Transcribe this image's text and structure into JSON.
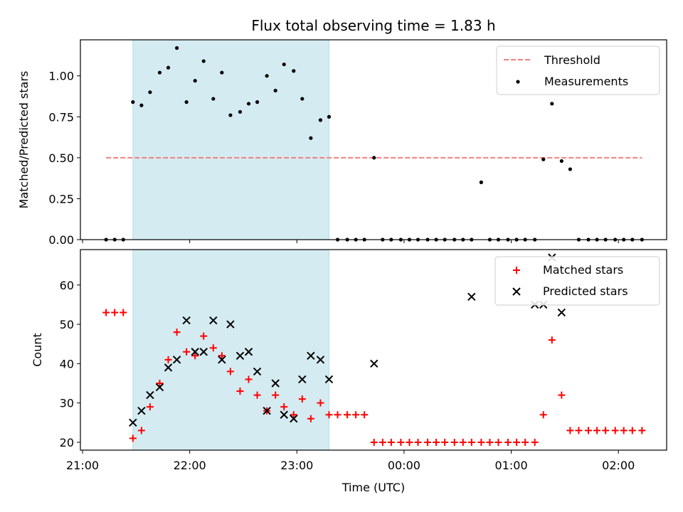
{
  "title": "Flux total observing time = 1.83 h",
  "chart_data": [
    {
      "type": "scatter",
      "ylabel": "Matched/Predicted stars",
      "ylim": [
        0,
        1.22
      ],
      "yticks": [
        0,
        0.25,
        0.5,
        0.75,
        1.0
      ],
      "ytick_labels": [
        "0.00",
        "0.25",
        "0.50",
        "0.75",
        "1.00"
      ],
      "xlim": [
        -0.02,
        5.45
      ],
      "shaded_span": [
        0.47,
        2.3
      ],
      "shade_color": "#d4ebf1",
      "threshold": {
        "name": "Threshold",
        "value": 0.5,
        "x_range": [
          0.22,
          5.22
        ],
        "color": "#f08080"
      },
      "series": [
        {
          "name": "Measurements",
          "marker": "dot",
          "color": "#000000",
          "x": [
            0.22,
            0.3,
            0.38,
            0.47,
            0.55,
            0.63,
            0.72,
            0.8,
            0.88,
            0.97,
            1.05,
            1.13,
            1.22,
            1.3,
            1.38,
            1.47,
            1.55,
            1.63,
            1.72,
            1.8,
            1.88,
            1.97,
            2.05,
            2.13,
            2.22,
            2.3,
            2.38,
            2.47,
            2.55,
            2.63,
            2.72,
            2.8,
            2.88,
            2.97,
            3.05,
            3.13,
            3.22,
            3.3,
            3.38,
            3.47,
            3.55,
            3.63,
            3.72,
            3.8,
            3.88,
            3.97,
            4.05,
            4.13,
            4.22,
            4.3,
            4.38,
            4.47,
            4.55,
            4.63,
            4.72,
            4.8,
            4.88,
            4.97,
            5.05,
            5.13,
            5.22
          ],
          "y": [
            0,
            0,
            0,
            0.84,
            0.82,
            0.9,
            1.02,
            1.05,
            1.17,
            0.84,
            0.97,
            1.09,
            0.86,
            1.02,
            0.76,
            0.78,
            0.83,
            0.84,
            1.0,
            0.91,
            1.07,
            1.03,
            0.86,
            0.62,
            0.73,
            0.75,
            0,
            0,
            0,
            0,
            0.5,
            0,
            0,
            0,
            0,
            0,
            0,
            0,
            0,
            0,
            0,
            0,
            0.35,
            0,
            0,
            0,
            0,
            0,
            0,
            0.49,
            0.83,
            0.48,
            0.43,
            0,
            0,
            0,
            0,
            0,
            0,
            0,
            0
          ]
        }
      ]
    },
    {
      "type": "scatter",
      "xlabel": "Time (UTC)",
      "ylabel": "Count",
      "ylim": [
        18,
        69
      ],
      "yticks": [
        20,
        30,
        40,
        50,
        60
      ],
      "ytick_labels": [
        "20",
        "30",
        "40",
        "50",
        "60"
      ],
      "xlim": [
        -0.02,
        5.45
      ],
      "xticks": [
        0,
        1,
        2,
        3,
        4,
        5
      ],
      "xtick_labels": [
        "21:00",
        "22:00",
        "23:00",
        "00:00",
        "01:00",
        "02:00"
      ],
      "shaded_span": [
        0.47,
        2.3
      ],
      "shade_color": "#d4ebf1",
      "series": [
        {
          "name": "Matched stars",
          "marker": "plus",
          "color": "#ff0000",
          "x": [
            0.22,
            0.3,
            0.38,
            0.47,
            0.55,
            0.63,
            0.72,
            0.8,
            0.88,
            0.97,
            1.05,
            1.13,
            1.22,
            1.3,
            1.38,
            1.47,
            1.55,
            1.63,
            1.72,
            1.8,
            1.88,
            1.97,
            2.05,
            2.13,
            2.22,
            2.3,
            2.38,
            2.47,
            2.55,
            2.63,
            2.72,
            2.8,
            2.88,
            2.97,
            3.05,
            3.13,
            3.22,
            3.3,
            3.38,
            3.47,
            3.55,
            3.63,
            3.72,
            3.8,
            3.88,
            3.97,
            4.05,
            4.13,
            4.22,
            4.3,
            4.38,
            4.47,
            4.55,
            4.63,
            4.72,
            4.8,
            4.88,
            4.97,
            5.05,
            5.13,
            5.22
          ],
          "y": [
            53,
            53,
            53,
            21,
            23,
            29,
            35,
            41,
            48,
            43,
            42,
            47,
            44,
            42,
            38,
            33,
            36,
            32,
            28,
            32,
            29,
            27,
            31,
            26,
            30,
            27,
            27,
            27,
            27,
            27,
            20,
            20,
            20,
            20,
            20,
            20,
            20,
            20,
            20,
            20,
            20,
            20,
            20,
            20,
            20,
            20,
            20,
            20,
            20,
            27,
            46,
            32,
            23,
            23,
            23,
            23,
            23,
            23,
            23,
            23,
            23
          ]
        },
        {
          "name": "Predicted stars",
          "marker": "x",
          "color": "#000000",
          "x": [
            0.47,
            0.55,
            0.63,
            0.72,
            0.8,
            0.88,
            0.97,
            1.05,
            1.13,
            1.22,
            1.3,
            1.38,
            1.47,
            1.55,
            1.63,
            1.72,
            1.8,
            1.88,
            1.97,
            2.05,
            2.13,
            2.22,
            2.3,
            2.72,
            3.63,
            4.22,
            4.3,
            4.38,
            4.47
          ],
          "y": [
            25,
            28,
            32,
            34,
            39,
            41,
            51,
            43,
            43,
            51,
            41,
            50,
            42,
            43,
            38,
            28,
            35,
            27,
            26,
            36,
            42,
            41,
            36,
            40,
            57,
            55,
            55,
            67,
            53
          ]
        }
      ]
    }
  ]
}
